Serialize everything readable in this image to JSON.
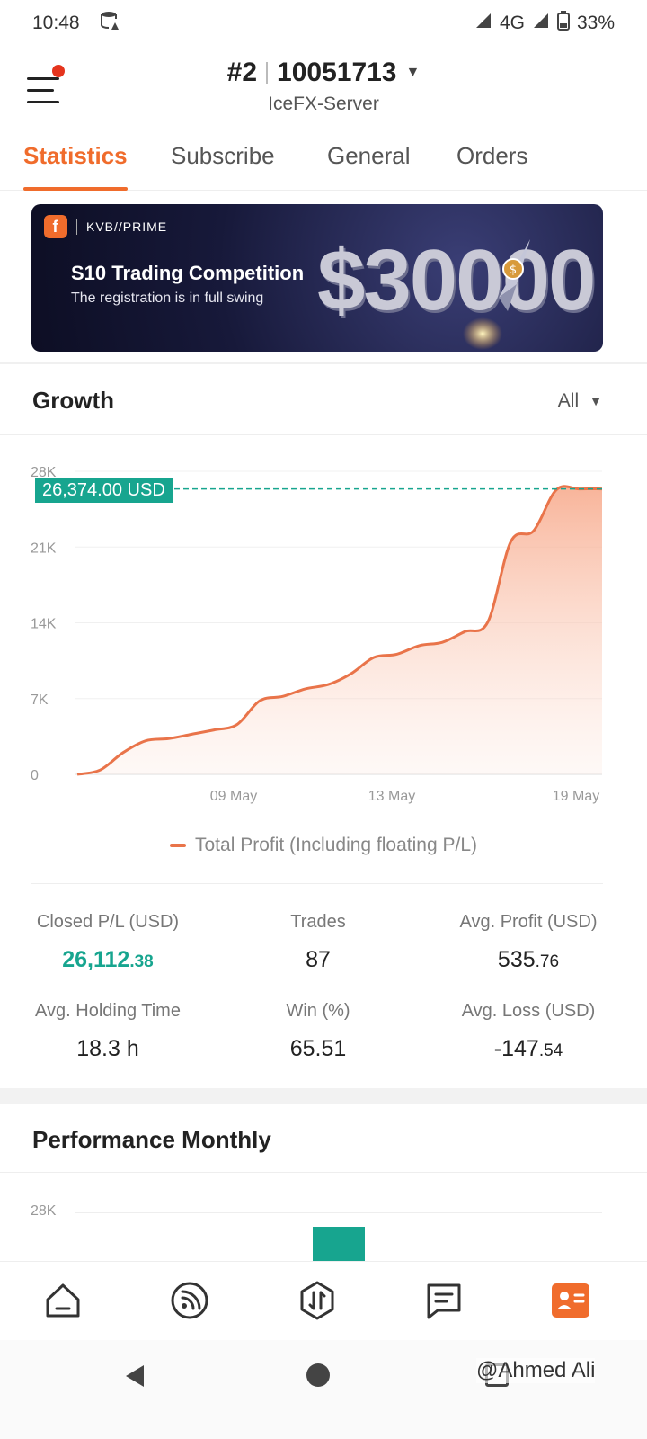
{
  "status_bar": {
    "time": "10:48",
    "network": "4G",
    "battery": "33%"
  },
  "header": {
    "account_prefix": "#2",
    "account_number": "10051713",
    "server": "IceFX-Server"
  },
  "tabs": [
    {
      "label": "Statistics",
      "active": true
    },
    {
      "label": "Subscribe",
      "active": false
    },
    {
      "label": "General",
      "active": false
    },
    {
      "label": "Orders",
      "active": false
    }
  ],
  "banner": {
    "brand": "KVB//PRIME",
    "title": "S10 Trading Competition",
    "subtitle": "The registration is in full swing",
    "amount": "$30000"
  },
  "growth": {
    "title": "Growth",
    "period": "All"
  },
  "chart_data": {
    "type": "area",
    "title": "",
    "xlabel": "",
    "ylabel": "",
    "y_ticks": [
      "28K",
      "21K",
      "14K",
      "7K",
      "0"
    ],
    "x_ticks": [
      "09 May",
      "13 May",
      "19 May"
    ],
    "ylim": [
      0,
      28000
    ],
    "current_value_label": "26,374.00 USD",
    "current_value": 26374,
    "series": [
      {
        "name": "Total Profit (Including floating P/L)",
        "color": "#e9744a",
        "values": [
          0,
          400,
          2000,
          3100,
          3300,
          3700,
          4100,
          4600,
          6800,
          7200,
          7900,
          8300,
          9300,
          10800,
          11100,
          11900,
          12200,
          13200,
          14100,
          21500,
          22500,
          26300,
          26374,
          26374
        ]
      }
    ]
  },
  "stats": {
    "closed_pl": {
      "label": "Closed P/L (USD)",
      "int": "26,112",
      "dec": ".38"
    },
    "trades": {
      "label": "Trades",
      "value": "87"
    },
    "avg_profit": {
      "label": "Avg. Profit (USD)",
      "int": "535",
      "dec": ".76"
    },
    "avg_holding": {
      "label": "Avg. Holding Time",
      "value": "18.3 h"
    },
    "win": {
      "label": "Win (%)",
      "value": "65.51"
    },
    "avg_loss": {
      "label": "Avg. Loss (USD)",
      "int": "-147",
      "dec": ".54"
    }
  },
  "performance": {
    "title": "Performance Monthly",
    "y_tick": "28K"
  },
  "watermark": "@Ahmed Ali"
}
